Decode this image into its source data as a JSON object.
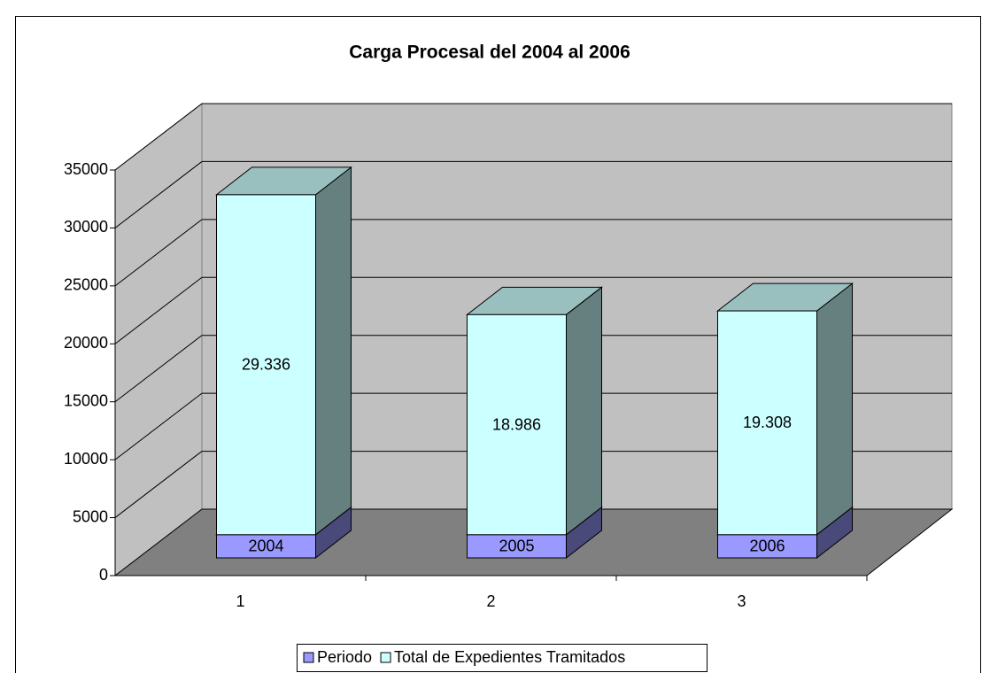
{
  "chart_data": {
    "type": "bar3d_stacked",
    "title": "Carga Procesal del 2004 al 2006",
    "categories": [
      "1",
      "2",
      "3"
    ],
    "series": [
      {
        "name": "Periodo",
        "color": "#9999ff",
        "values": [
          2004,
          2005,
          2006
        ]
      },
      {
        "name": "Total de Expedientes Tramitados",
        "color": "#ccffff",
        "values": [
          29336,
          18986,
          19308
        ],
        "value_labels": [
          "29.336",
          "18.986",
          "19.308"
        ]
      }
    ],
    "ylim": [
      0,
      35000
    ],
    "yticks": [
      0,
      5000,
      10000,
      15000,
      20000,
      25000,
      30000,
      35000
    ],
    "grid": true,
    "legend": "bottom"
  }
}
